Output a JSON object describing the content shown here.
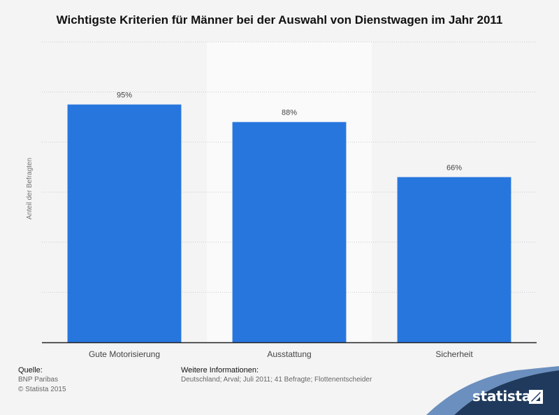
{
  "chart_data": {
    "type": "bar",
    "title": "Wichtigste Kriterien für Männer bei der Auswahl von Dienstwagen im Jahr 2011",
    "xlabel": "",
    "ylabel": "Anteil der Befragten",
    "categories": [
      "Gute Motorisierung",
      "Ausstattung",
      "Sicherheit"
    ],
    "values": [
      95,
      88,
      66
    ],
    "value_labels": [
      "95%",
      "88%",
      "66%"
    ],
    "unit": "%",
    "ylim": [
      0,
      120
    ],
    "grid": true,
    "highlight_category_index": 1,
    "colors": {
      "bar": "#2776de",
      "gridline": "#cccccc",
      "axis": "#222222",
      "highlight_band": "#fafafa"
    }
  },
  "footer": {
    "source_heading": "Quelle:",
    "source_lines": [
      "BNP Paribas",
      "© Statista 2015"
    ],
    "info_heading": "Weitere Informationen:",
    "info_text": "Deutschland; Arval; Juli 2011; 41 Befragte; Flottenentscheider"
  },
  "brand": {
    "name": "statista",
    "banner_color": "#1f3a5c",
    "wave_color": "#6b8fbe"
  }
}
